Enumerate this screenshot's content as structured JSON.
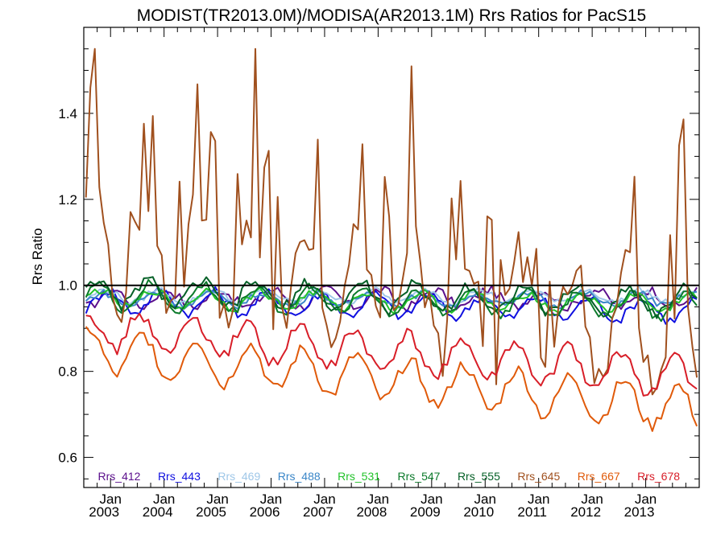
{
  "chart_data": {
    "type": "line",
    "title": "MODIST(TR2013.0M)/MODISA(AR2013.1M)  Rrs Ratios for PacS15",
    "ylabel": "Rrs Ratio",
    "xlabel": "",
    "xlim": [
      2002.5,
      2014.0
    ],
    "ylim": [
      0.53,
      1.6
    ],
    "y_ticks": [
      0.6,
      0.8,
      1.0,
      1.2,
      1.4
    ],
    "y_tick_labels": [
      "0.6",
      "0.8",
      "1.0",
      "1.2",
      "1.4"
    ],
    "x_ticks": [
      2003,
      2004,
      2005,
      2006,
      2007,
      2008,
      2009,
      2010,
      2011,
      2012,
      2013
    ],
    "x_tick_labels": [
      [
        "Jan",
        "2003"
      ],
      [
        "Jan",
        "2004"
      ],
      [
        "Jan",
        "2005"
      ],
      [
        "Jan",
        "2006"
      ],
      [
        "Jan",
        "2007"
      ],
      [
        "Jan",
        "2008"
      ],
      [
        "Jan",
        "2009"
      ],
      [
        "Jan",
        "2010"
      ],
      [
        "Jan",
        "2011"
      ],
      [
        "Jan",
        "2012"
      ],
      [
        "Jan",
        "2013"
      ]
    ],
    "reference_line": 1.0,
    "grid": false,
    "legend_position": "bottom inside plot",
    "series": [
      {
        "name": "Rrs_412",
        "color": "#5b0f8c",
        "amp": 0.02,
        "phase": 0.2,
        "offset": 0.97,
        "trend": 0.0,
        "noise": 0.012,
        "start": 2002.54
      },
      {
        "name": "Rrs_443",
        "color": "#1010e0",
        "amp": 0.025,
        "phase": 0.3,
        "offset": 0.965,
        "trend": -0.002,
        "noise": 0.012,
        "start": 2002.54
      },
      {
        "name": "Rrs_469",
        "color": "#9fc7e8",
        "amp": 0.015,
        "phase": 0.35,
        "offset": 0.975,
        "trend": 0.0,
        "noise": 0.008,
        "start": 2002.54
      },
      {
        "name": "Rrs_488",
        "color": "#3a86c8",
        "amp": 0.015,
        "phase": 0.4,
        "offset": 0.968,
        "trend": 0.0,
        "noise": 0.008,
        "start": 2002.54
      },
      {
        "name": "Rrs_531",
        "color": "#22c22a",
        "amp": 0.02,
        "phase": 0.45,
        "offset": 0.97,
        "trend": -0.001,
        "noise": 0.01,
        "start": 2002.54
      },
      {
        "name": "Rrs_547",
        "color": "#0c7a2b",
        "amp": 0.03,
        "phase": 0.5,
        "offset": 0.975,
        "trend": -0.002,
        "noise": 0.012,
        "start": 2002.54
      },
      {
        "name": "Rrs_555",
        "color": "#056027",
        "amp": 0.03,
        "phase": 0.55,
        "offset": 0.985,
        "trend": -0.002,
        "noise": 0.014,
        "start": 2002.54
      },
      {
        "name": "Rrs_645",
        "color": "#a0501e",
        "amp": 0.13,
        "phase": 0.6,
        "offset": 1.1,
        "trend": -0.02,
        "noise": 0.06,
        "start": 2002.54
      },
      {
        "name": "Rrs_667",
        "color": "#e05a0a",
        "amp": 0.05,
        "phase": 0.65,
        "offset": 0.85,
        "trend": -0.012,
        "noise": 0.015,
        "start": 2002.54
      },
      {
        "name": "Rrs_678",
        "color": "#d81e28",
        "amp": 0.045,
        "phase": 0.7,
        "offset": 0.9,
        "trend": -0.01,
        "noise": 0.015,
        "start": 2002.54
      }
    ]
  }
}
